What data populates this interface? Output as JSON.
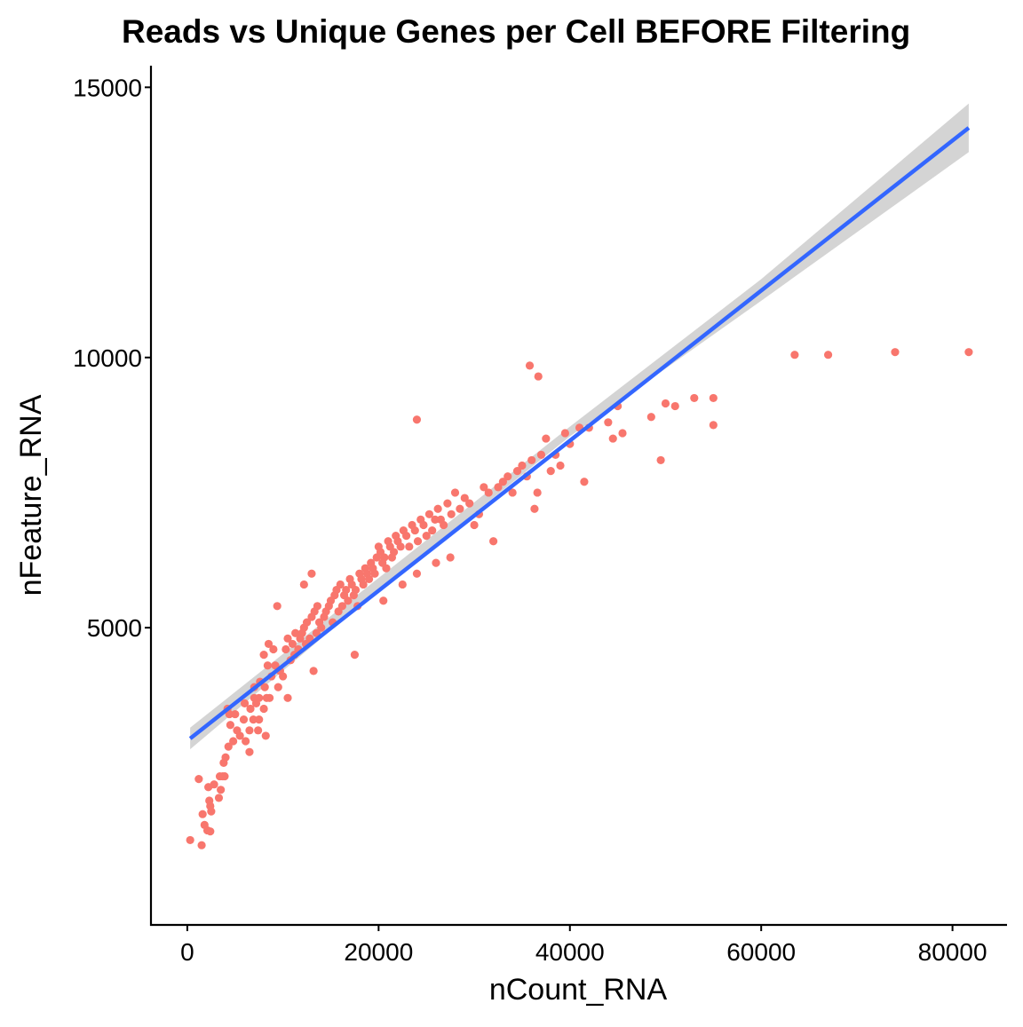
{
  "chart_data": {
    "type": "scatter",
    "title": "Reads vs Unique Genes per Cell BEFORE Filtering",
    "xlabel": "nCount_RNA",
    "ylabel": "nFeature_RNA",
    "xlim": [
      -3800,
      85700
    ],
    "ylim": [
      -500,
      15400
    ],
    "x_ticks": [
      0,
      20000,
      40000,
      60000,
      80000
    ],
    "x_tick_labels": [
      "0",
      "20000",
      "40000",
      "60000",
      "80000"
    ],
    "y_ticks": [
      5000,
      10000,
      15000
    ],
    "y_tick_labels": [
      "5000",
      "10000",
      "15000"
    ],
    "grid": false,
    "legend": "none",
    "point_color": "#F8766D",
    "trend": {
      "method": "linear",
      "color": "#3366FF",
      "band_color": "#CCCCCC",
      "line": [
        [
          300,
          2950
        ],
        [
          81700,
          14250
        ]
      ],
      "band_upper": [
        [
          300,
          3150
        ],
        [
          20000,
          5920
        ],
        [
          40000,
          8720
        ],
        [
          60000,
          11450
        ],
        [
          81700,
          14700
        ]
      ],
      "band_lower": [
        [
          300,
          2750
        ],
        [
          20000,
          5700
        ],
        [
          40000,
          8540
        ],
        [
          60000,
          11050
        ],
        [
          81700,
          13800
        ]
      ]
    },
    "points": [
      [
        300,
        1070
      ],
      [
        1500,
        975
      ],
      [
        1200,
        2200
      ],
      [
        1600,
        1550
      ],
      [
        1800,
        1350
      ],
      [
        2300,
        1800
      ],
      [
        2400,
        1700
      ],
      [
        2500,
        1600
      ],
      [
        2200,
        2050
      ],
      [
        2100,
        1250
      ],
      [
        2400,
        1230
      ],
      [
        3300,
        1850
      ],
      [
        3500,
        2000
      ],
      [
        3400,
        2250
      ],
      [
        3700,
        2250
      ],
      [
        3900,
        2250
      ],
      [
        3800,
        2500
      ],
      [
        4000,
        2600
      ],
      [
        4300,
        2800
      ],
      [
        4800,
        2900
      ],
      [
        5200,
        3100
      ],
      [
        4500,
        3200
      ],
      [
        4400,
        3400
      ],
      [
        4200,
        3500
      ],
      [
        5000,
        3400
      ],
      [
        5500,
        3000
      ],
      [
        5900,
        3300
      ],
      [
        6100,
        2900
      ],
      [
        6500,
        3100
      ],
      [
        6000,
        3600
      ],
      [
        6600,
        3500
      ],
      [
        6900,
        3300
      ],
      [
        7000,
        3700
      ],
      [
        7200,
        3600
      ],
      [
        7500,
        3700
      ],
      [
        7000,
        3900
      ],
      [
        7600,
        4000
      ],
      [
        7500,
        3300
      ],
      [
        7400,
        3100
      ],
      [
        8000,
        3500
      ],
      [
        8300,
        3700
      ],
      [
        8100,
        3900
      ],
      [
        8600,
        3700
      ],
      [
        8000,
        4500
      ],
      [
        8400,
        4300
      ],
      [
        8500,
        4700
      ],
      [
        9000,
        4600
      ],
      [
        8800,
        4100
      ],
      [
        9200,
        4300
      ],
      [
        9500,
        3900
      ],
      [
        9400,
        5400
      ],
      [
        9700,
        4200
      ],
      [
        10000,
        4100
      ],
      [
        10300,
        4600
      ],
      [
        10500,
        4800
      ],
      [
        10800,
        4400
      ],
      [
        11000,
        4700
      ],
      [
        11200,
        4500
      ],
      [
        11300,
        4900
      ],
      [
        11600,
        4600
      ],
      [
        11800,
        4800
      ],
      [
        12000,
        4900
      ],
      [
        12200,
        5000
      ],
      [
        12400,
        4700
      ],
      [
        12500,
        5100
      ],
      [
        12800,
        4800
      ],
      [
        13000,
        5200
      ],
      [
        13300,
        5300
      ],
      [
        13500,
        4900
      ],
      [
        13800,
        5100
      ],
      [
        13600,
        5400
      ],
      [
        14000,
        5000
      ],
      [
        14300,
        5200
      ],
      [
        14500,
        5300
      ],
      [
        14800,
        5400
      ],
      [
        15000,
        5500
      ],
      [
        15200,
        5100
      ],
      [
        15400,
        5600
      ],
      [
        15600,
        5700
      ],
      [
        15800,
        5300
      ],
      [
        16000,
        5800
      ],
      [
        16200,
        5400
      ],
      [
        16400,
        5600
      ],
      [
        16600,
        5700
      ],
      [
        16800,
        5500
      ],
      [
        17000,
        5900
      ],
      [
        17200,
        5800
      ],
      [
        17400,
        5600
      ],
      [
        17600,
        5700
      ],
      [
        17800,
        5400
      ],
      [
        18000,
        6000
      ],
      [
        18200,
        5900
      ],
      [
        18400,
        5800
      ],
      [
        18600,
        6100
      ],
      [
        18800,
        6000
      ],
      [
        19000,
        5900
      ],
      [
        19200,
        6200
      ],
      [
        19400,
        6100
      ],
      [
        19600,
        6000
      ],
      [
        19800,
        6300
      ],
      [
        20000,
        6500
      ],
      [
        20200,
        6400
      ],
      [
        20400,
        6200
      ],
      [
        20600,
        6300
      ],
      [
        20800,
        6100
      ],
      [
        21000,
        6600
      ],
      [
        21200,
        6500
      ],
      [
        21400,
        6300
      ],
      [
        21600,
        6400
      ],
      [
        21800,
        6700
      ],
      [
        22000,
        6600
      ],
      [
        22300,
        6500
      ],
      [
        22600,
        6800
      ],
      [
        22900,
        6700
      ],
      [
        23200,
        6500
      ],
      [
        23500,
        6900
      ],
      [
        23800,
        6800
      ],
      [
        24100,
        6600
      ],
      [
        24400,
        7000
      ],
      [
        24700,
        6900
      ],
      [
        25000,
        6700
      ],
      [
        25300,
        7100
      ],
      [
        25600,
        6800
      ],
      [
        25900,
        7000
      ],
      [
        26200,
        7200
      ],
      [
        26500,
        7000
      ],
      [
        26800,
        6900
      ],
      [
        27200,
        7300
      ],
      [
        27600,
        7100
      ],
      [
        28000,
        7500
      ],
      [
        28500,
        7200
      ],
      [
        29000,
        7400
      ],
      [
        29500,
        7300
      ],
      [
        30000,
        6900
      ],
      [
        30500,
        7100
      ],
      [
        31000,
        7600
      ],
      [
        31500,
        7500
      ],
      [
        32000,
        6600
      ],
      [
        32500,
        7600
      ],
      [
        33000,
        7700
      ],
      [
        33500,
        7800
      ],
      [
        34000,
        7500
      ],
      [
        34500,
        7900
      ],
      [
        35000,
        8000
      ],
      [
        35500,
        7800
      ],
      [
        36000,
        8100
      ],
      [
        36300,
        7200
      ],
      [
        36600,
        7500
      ],
      [
        37000,
        8200
      ],
      [
        37500,
        8500
      ],
      [
        38000,
        7900
      ],
      [
        38500,
        8200
      ],
      [
        39000,
        8000
      ],
      [
        39500,
        8600
      ],
      [
        40000,
        8400
      ],
      [
        41000,
        8700
      ],
      [
        41500,
        7700
      ],
      [
        42000,
        8700
      ],
      [
        44000,
        8800
      ],
      [
        44500,
        8500
      ],
      [
        45000,
        9100
      ],
      [
        45500,
        8600
      ],
      [
        48500,
        8900
      ],
      [
        49500,
        8100
      ],
      [
        50000,
        9150
      ],
      [
        51000,
        9100
      ],
      [
        53000,
        9250
      ],
      [
        55000,
        9250
      ],
      [
        55000,
        8750
      ],
      [
        35800,
        9850
      ],
      [
        36700,
        9650
      ],
      [
        24000,
        8850
      ],
      [
        13000,
        6000
      ],
      [
        12200,
        5800
      ],
      [
        17500,
        4500
      ],
      [
        13200,
        4200
      ],
      [
        10500,
        3700
      ],
      [
        8200,
        3000
      ],
      [
        2800,
        2100
      ],
      [
        6500,
        2700
      ],
      [
        20500,
        5500
      ],
      [
        22500,
        5800
      ],
      [
        24000,
        6000
      ],
      [
        26000,
        6200
      ],
      [
        27500,
        6300
      ],
      [
        63500,
        10050
      ],
      [
        67000,
        10050
      ],
      [
        74000,
        10100
      ],
      [
        81700,
        10100
      ]
    ]
  }
}
